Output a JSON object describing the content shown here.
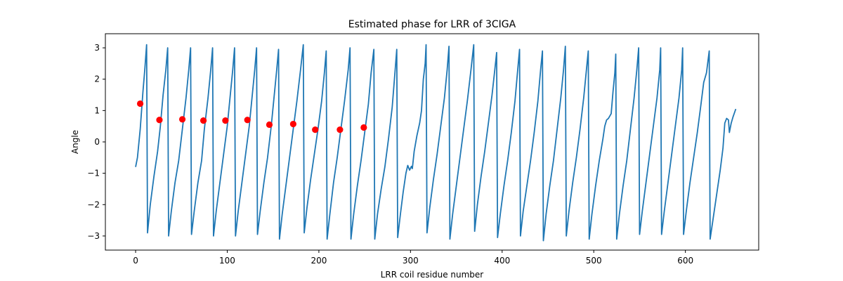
{
  "chart_data": {
    "type": "line",
    "title": "Estimated phase for LRR of 3CIGA",
    "xlabel": "LRR coil residue number",
    "ylabel": "Angle",
    "xlim": [
      -33,
      680
    ],
    "ylim": [
      -3.45,
      3.45
    ],
    "xticks": [
      0,
      100,
      200,
      300,
      400,
      500,
      600
    ],
    "yticks": [
      -3,
      -2,
      -1,
      0,
      1,
      2,
      3
    ],
    "grid": false,
    "colors": {
      "line": "#1f77b4",
      "markers": "#ff0000"
    },
    "series": [
      {
        "type": "line",
        "points": [
          [
            0,
            -0.8
          ],
          [
            2,
            -0.5
          ],
          [
            5,
            0.4
          ],
          [
            8,
            1.6
          ],
          [
            10,
            2.3
          ],
          [
            12,
            3.1
          ],
          [
            13,
            -2.9
          ],
          [
            16,
            -2.0
          ],
          [
            20,
            -1.1
          ],
          [
            24,
            -0.3
          ],
          [
            27,
            0.5
          ],
          [
            30,
            1.5
          ],
          [
            33,
            2.3
          ],
          [
            35,
            3.0
          ],
          [
            36,
            -3.0
          ],
          [
            39,
            -2.2
          ],
          [
            43,
            -1.3
          ],
          [
            47,
            -0.6
          ],
          [
            51,
            0.4
          ],
          [
            55,
            1.4
          ],
          [
            58,
            2.3
          ],
          [
            60,
            3.0
          ],
          [
            61,
            -2.95
          ],
          [
            64,
            -2.2
          ],
          [
            68,
            -1.3
          ],
          [
            72,
            -0.6
          ],
          [
            75,
            0.4
          ],
          [
            79,
            1.4
          ],
          [
            82,
            2.3
          ],
          [
            84,
            3.0
          ],
          [
            85,
            -3.0
          ],
          [
            88,
            -2.2
          ],
          [
            92,
            -1.3
          ],
          [
            96,
            -0.4
          ],
          [
            100,
            0.5
          ],
          [
            103,
            1.4
          ],
          [
            106,
            2.3
          ],
          [
            108,
            3.0
          ],
          [
            109,
            -3.0
          ],
          [
            112,
            -2.2
          ],
          [
            116,
            -1.3
          ],
          [
            120,
            -0.4
          ],
          [
            124,
            0.5
          ],
          [
            127,
            1.4
          ],
          [
            130,
            2.3
          ],
          [
            132,
            3.0
          ],
          [
            133,
            -2.95
          ],
          [
            136,
            -2.2
          ],
          [
            140,
            -1.3
          ],
          [
            144,
            -0.5
          ],
          [
            148,
            0.5
          ],
          [
            151,
            1.4
          ],
          [
            154,
            2.3
          ],
          [
            156,
            2.95
          ],
          [
            157,
            -3.1
          ],
          [
            160,
            -2.3
          ],
          [
            164,
            -1.4
          ],
          [
            168,
            -0.5
          ],
          [
            172,
            0.4
          ],
          [
            176,
            1.3
          ],
          [
            180,
            2.3
          ],
          [
            183,
            3.1
          ],
          [
            184,
            -2.9
          ],
          [
            187,
            -2.1
          ],
          [
            191,
            -1.2
          ],
          [
            195,
            -0.4
          ],
          [
            199,
            0.4
          ],
          [
            203,
            1.3
          ],
          [
            206,
            2.2
          ],
          [
            208,
            2.9
          ],
          [
            209,
            -3.1
          ],
          [
            212,
            -2.3
          ],
          [
            216,
            -1.3
          ],
          [
            220,
            -0.5
          ],
          [
            224,
            0.4
          ],
          [
            228,
            1.3
          ],
          [
            232,
            2.3
          ],
          [
            234,
            3.0
          ],
          [
            235,
            -3.1
          ],
          [
            238,
            -2.3
          ],
          [
            242,
            -1.4
          ],
          [
            246,
            -0.6
          ],
          [
            250,
            0.3
          ],
          [
            254,
            1.2
          ],
          [
            257,
            2.2
          ],
          [
            260,
            2.95
          ],
          [
            261,
            -3.1
          ],
          [
            264,
            -2.3
          ],
          [
            268,
            -1.5
          ],
          [
            272,
            -0.8
          ],
          [
            276,
            0.1
          ],
          [
            280,
            1.1
          ],
          [
            283,
            2.2
          ],
          [
            285,
            2.95
          ],
          [
            286,
            -3.05
          ],
          [
            289,
            -2.3
          ],
          [
            292,
            -1.6
          ],
          [
            295,
            -1.0
          ],
          [
            297,
            -0.75
          ],
          [
            299,
            -0.9
          ],
          [
            301,
            -0.78
          ],
          [
            302,
            -0.85
          ],
          [
            304,
            -0.3
          ],
          [
            307,
            0.2
          ],
          [
            310,
            0.6
          ],
          [
            312,
            1.0
          ],
          [
            314,
            2.0
          ],
          [
            316,
            2.5
          ],
          [
            317,
            3.1
          ],
          [
            318,
            -2.9
          ],
          [
            321,
            -2.1
          ],
          [
            325,
            -1.2
          ],
          [
            329,
            -0.4
          ],
          [
            333,
            0.5
          ],
          [
            337,
            1.4
          ],
          [
            340,
            2.3
          ],
          [
            342,
            3.05
          ],
          [
            343,
            -3.1
          ],
          [
            346,
            -2.3
          ],
          [
            350,
            -1.4
          ],
          [
            354,
            -0.5
          ],
          [
            358,
            0.4
          ],
          [
            362,
            1.3
          ],
          [
            366,
            2.3
          ],
          [
            369,
            3.1
          ],
          [
            370,
            -2.85
          ],
          [
            373,
            -2.0
          ],
          [
            377,
            -1.1
          ],
          [
            381,
            -0.3
          ],
          [
            385,
            0.6
          ],
          [
            389,
            1.5
          ],
          [
            392,
            2.3
          ],
          [
            394,
            2.85
          ],
          [
            395,
            -3.05
          ],
          [
            398,
            -2.3
          ],
          [
            402,
            -1.4
          ],
          [
            406,
            -0.6
          ],
          [
            410,
            0.3
          ],
          [
            414,
            1.3
          ],
          [
            417,
            2.3
          ],
          [
            419,
            2.95
          ],
          [
            420,
            -3.0
          ],
          [
            423,
            -2.2
          ],
          [
            427,
            -1.4
          ],
          [
            431,
            -0.6
          ],
          [
            435,
            0.3
          ],
          [
            439,
            1.3
          ],
          [
            442,
            2.3
          ],
          [
            444,
            2.9
          ],
          [
            445,
            -3.15
          ],
          [
            448,
            -2.3
          ],
          [
            452,
            -1.4
          ],
          [
            456,
            -0.6
          ],
          [
            460,
            0.4
          ],
          [
            464,
            1.4
          ],
          [
            467,
            2.3
          ],
          [
            469,
            3.05
          ],
          [
            470,
            -3.0
          ],
          [
            473,
            -2.2
          ],
          [
            477,
            -1.3
          ],
          [
            481,
            -0.5
          ],
          [
            485,
            0.4
          ],
          [
            489,
            1.4
          ],
          [
            492,
            2.3
          ],
          [
            494,
            2.9
          ],
          [
            495,
            -3.1
          ],
          [
            498,
            -2.3
          ],
          [
            502,
            -1.4
          ],
          [
            506,
            -0.6
          ],
          [
            510,
            0.1
          ],
          [
            512,
            0.5
          ],
          [
            514,
            0.7
          ],
          [
            516,
            0.75
          ],
          [
            519,
            0.9
          ],
          [
            521,
            1.6
          ],
          [
            523,
            2.2
          ],
          [
            524,
            2.8
          ],
          [
            525,
            -3.1
          ],
          [
            528,
            -2.3
          ],
          [
            532,
            -1.4
          ],
          [
            536,
            -0.6
          ],
          [
            540,
            0.4
          ],
          [
            544,
            1.4
          ],
          [
            547,
            2.3
          ],
          [
            549,
            3.0
          ],
          [
            550,
            -2.95
          ],
          [
            553,
            -2.2
          ],
          [
            557,
            -1.3
          ],
          [
            561,
            -0.4
          ],
          [
            565,
            0.5
          ],
          [
            569,
            1.4
          ],
          [
            572,
            2.3
          ],
          [
            573,
            3.0
          ],
          [
            574,
            -2.95
          ],
          [
            577,
            -2.2
          ],
          [
            581,
            -1.3
          ],
          [
            585,
            -0.4
          ],
          [
            589,
            0.5
          ],
          [
            593,
            1.4
          ],
          [
            596,
            2.3
          ],
          [
            597,
            3.0
          ],
          [
            598,
            -2.95
          ],
          [
            601,
            -2.2
          ],
          [
            605,
            -1.3
          ],
          [
            609,
            -0.5
          ],
          [
            613,
            0.3
          ],
          [
            617,
            1.2
          ],
          [
            620,
            1.9
          ],
          [
            623,
            2.2
          ],
          [
            626,
            2.9
          ],
          [
            627,
            -3.1
          ],
          [
            630,
            -2.5
          ],
          [
            634,
            -1.7
          ],
          [
            638,
            -0.9
          ],
          [
            641,
            -0.2
          ],
          [
            643,
            0.6
          ],
          [
            645,
            0.75
          ],
          [
            647,
            0.7
          ],
          [
            648,
            0.3
          ],
          [
            650,
            0.6
          ],
          [
            652,
            0.8
          ],
          [
            655,
            1.05
          ]
        ]
      },
      {
        "type": "scatter",
        "points": [
          [
            5,
            1.22
          ],
          [
            26,
            0.7
          ],
          [
            51,
            0.72
          ],
          [
            74,
            0.68
          ],
          [
            98,
            0.68
          ],
          [
            122,
            0.7
          ],
          [
            146,
            0.55
          ],
          [
            172,
            0.57
          ],
          [
            196,
            0.39
          ],
          [
            223,
            0.39
          ],
          [
            249,
            0.46
          ]
        ]
      }
    ]
  }
}
